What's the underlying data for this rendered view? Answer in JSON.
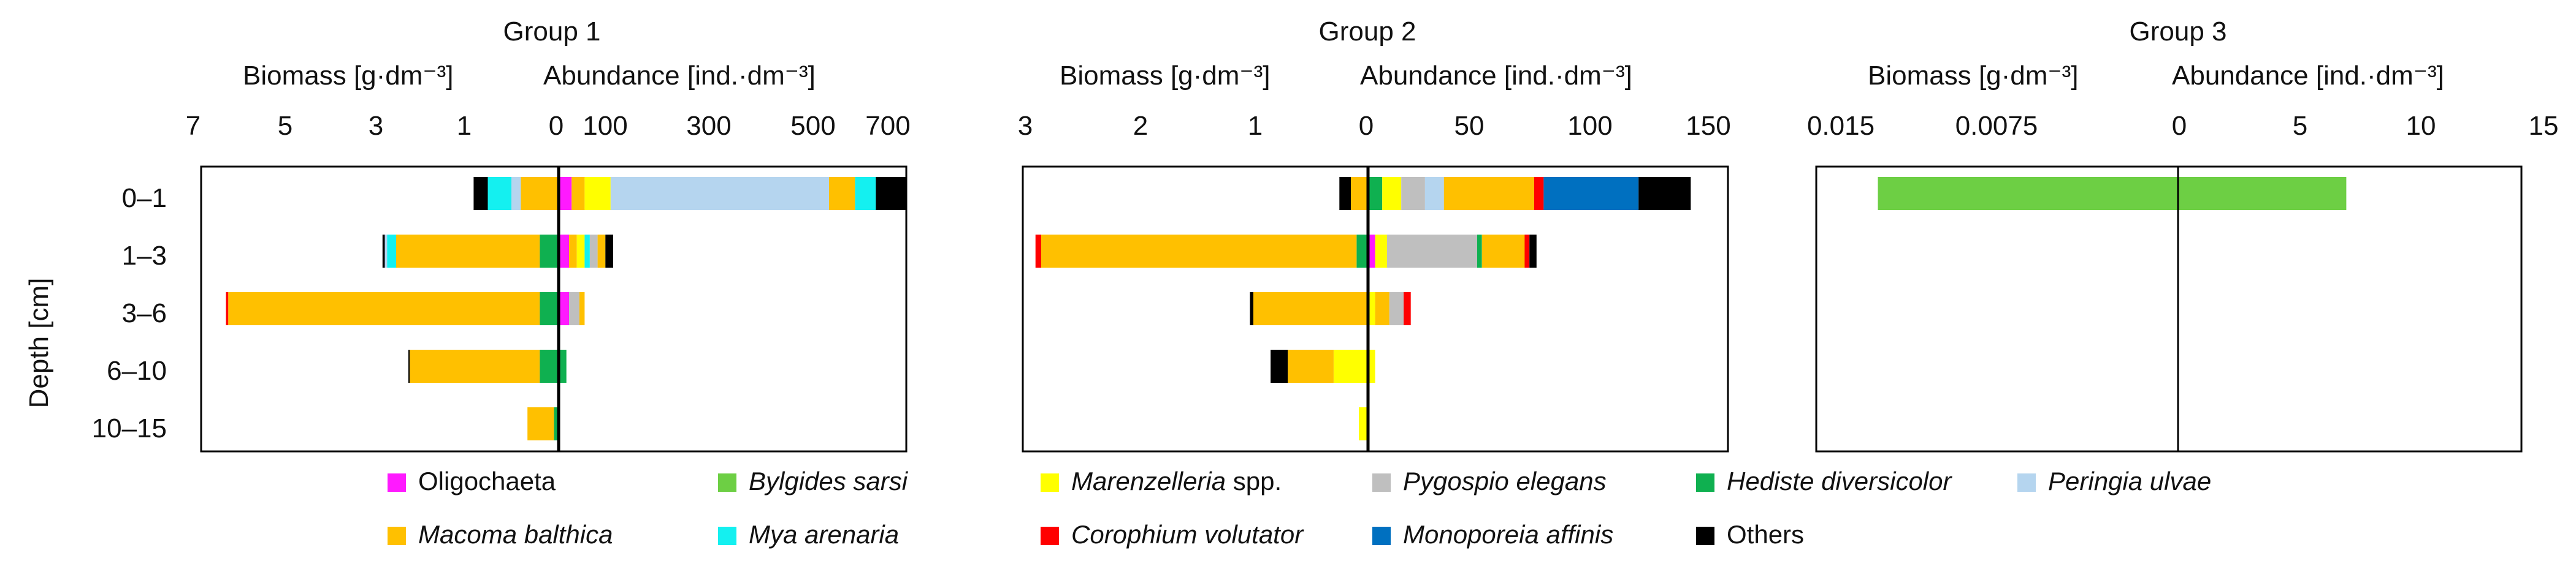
{
  "figure": {
    "depth_axis_label": "Depth [cm]",
    "depth_categories": [
      "0–1",
      "1–3",
      "3–6",
      "6–10",
      "10–15"
    ]
  },
  "species": [
    {
      "key": "olig",
      "name": "Oligochaeta",
      "italic": false,
      "color": "#ff1aff"
    },
    {
      "key": "byl",
      "name": "Bylgides sarsi",
      "italic": true,
      "color": "#6dcf44"
    },
    {
      "key": "mar",
      "name": "Marenzelleria",
      "suffix": " spp.",
      "italic": true,
      "color": "#ffff00"
    },
    {
      "key": "pyg",
      "name": "Pygospio elegans",
      "italic": true,
      "color": "#bfbfbf"
    },
    {
      "key": "hed",
      "name": "Hediste diversicolor",
      "italic": true,
      "color": "#0fb050"
    },
    {
      "key": "per",
      "name": "Peringia ulvae",
      "italic": true,
      "color": "#b5d5ef"
    },
    {
      "key": "mac",
      "name": "Macoma balthica",
      "italic": true,
      "color": "#ffc000"
    },
    {
      "key": "mya",
      "name": "Mya arenaria",
      "italic": true,
      "color": "#14f0f0"
    },
    {
      "key": "cor",
      "name": "Corophium volutator",
      "italic": true,
      "color": "#ff0000"
    },
    {
      "key": "mon",
      "name": "Monoporeia affinis",
      "italic": true,
      "color": "#0070c0"
    },
    {
      "key": "oth",
      "name": "Others",
      "italic": false,
      "color": "#000000"
    }
  ],
  "chart_data": [
    {
      "type": "bar",
      "orientation": "horizontal-diverging",
      "title": "Group 1",
      "left_label": "Biomass [g·dm⁻³]",
      "right_label": "Abundance  [ind.·dm⁻³]",
      "left_ticks": [
        "7",
        "5",
        "3",
        "1"
      ],
      "right_ticks": [
        "0",
        "100",
        "300",
        "500",
        "700"
      ],
      "categories": [
        "0–1",
        "1–3",
        "3–6",
        "6–10",
        "10–15"
      ],
      "biomass": [
        [
          [
            "mac",
            0.4
          ],
          [
            "per",
            0.1
          ],
          [
            "mya",
            0.25
          ],
          [
            "oth",
            0.15
          ]
        ],
        [
          [
            "hed",
            0.2
          ],
          [
            "mac",
            2.3
          ],
          [
            "mya",
            0.2
          ],
          [
            "per",
            0.05
          ],
          [
            "oth",
            0.05
          ]
        ],
        [
          [
            "hed",
            0.2
          ],
          [
            "mac",
            6.0
          ],
          [
            "cor",
            0.05
          ]
        ],
        [
          [
            "hed",
            0.2
          ],
          [
            "mac",
            2.0
          ],
          [
            "oth",
            0.03
          ]
        ],
        [
          [
            "hed",
            0.05
          ],
          [
            "mac",
            0.28
          ]
        ]
      ],
      "abundance": [
        [
          [
            "olig",
            25
          ],
          [
            "mac",
            25
          ],
          [
            "mar",
            50
          ],
          [
            "per",
            420
          ],
          [
            "mac",
            50
          ],
          [
            "mya",
            40
          ],
          [
            "oth",
            60
          ]
        ],
        [
          [
            "olig",
            20
          ],
          [
            "mac",
            15
          ],
          [
            "mar",
            15
          ],
          [
            "mya",
            10
          ],
          [
            "pyg",
            15
          ],
          [
            "mac",
            15
          ],
          [
            "oth",
            15
          ]
        ],
        [
          [
            "olig",
            20
          ],
          [
            "pyg",
            20
          ],
          [
            "mac",
            10
          ]
        ],
        [
          [
            "hed",
            15
          ]
        ],
        []
      ]
    },
    {
      "type": "bar",
      "orientation": "horizontal-diverging",
      "title": "Group 2",
      "left_label": "Biomass [g·dm⁻³]",
      "right_label": "Abundance  [ind.·dm⁻³]",
      "left_ticks": [
        "3",
        "2",
        "1",
        "0"
      ],
      "right_ticks": [
        "50",
        "100",
        "150"
      ],
      "categories": [
        "0–1",
        "1–3",
        "3–6",
        "6–10",
        "10–15"
      ],
      "biomass": [
        [
          [
            "mac",
            0.15
          ],
          [
            "oth",
            0.1
          ]
        ],
        [
          [
            "hed",
            0.1
          ],
          [
            "mac",
            2.75
          ],
          [
            "cor",
            0.05
          ]
        ],
        [
          [
            "mac",
            1.0
          ],
          [
            "oth",
            0.03
          ]
        ],
        [
          [
            "mar",
            0.3
          ],
          [
            "mac",
            0.4
          ],
          [
            "oth",
            0.15
          ]
        ],
        [
          [
            "mar",
            0.08
          ]
        ]
      ],
      "abundance": [
        [
          [
            "hed",
            6
          ],
          [
            "mar",
            8
          ],
          [
            "pyg",
            10
          ],
          [
            "per",
            8
          ],
          [
            "mac",
            38
          ],
          [
            "cor",
            4
          ],
          [
            "mon",
            40
          ],
          [
            "oth",
            22
          ]
        ],
        [
          [
            "olig",
            3
          ],
          [
            "mar",
            5
          ],
          [
            "pyg",
            38
          ],
          [
            "hed",
            2
          ],
          [
            "mac",
            18
          ],
          [
            "cor",
            2
          ],
          [
            "oth",
            3
          ]
        ],
        [
          [
            "mar",
            3
          ],
          [
            "mac",
            6
          ],
          [
            "pyg",
            6
          ],
          [
            "cor",
            3
          ]
        ],
        [
          [
            "mar",
            3
          ]
        ],
        []
      ]
    },
    {
      "type": "bar",
      "orientation": "horizontal-diverging",
      "title": "Group 3",
      "left_label": "Biomass [g·dm⁻³]",
      "right_label": "Abundance  [ind.·dm⁻³]",
      "left_ticks": [
        "0.015",
        "0.0075",
        "0"
      ],
      "right_ticks": [
        "5",
        "10",
        "15"
      ],
      "categories": [
        "0–1",
        "1–3",
        "3–6",
        "6–10",
        "10–15"
      ],
      "biomass": [
        [
          [
            "byl",
            0.0123
          ]
        ],
        [],
        [],
        [],
        []
      ],
      "abundance": [
        [
          [
            "byl",
            7.0
          ]
        ],
        [],
        [],
        [],
        []
      ]
    }
  ]
}
